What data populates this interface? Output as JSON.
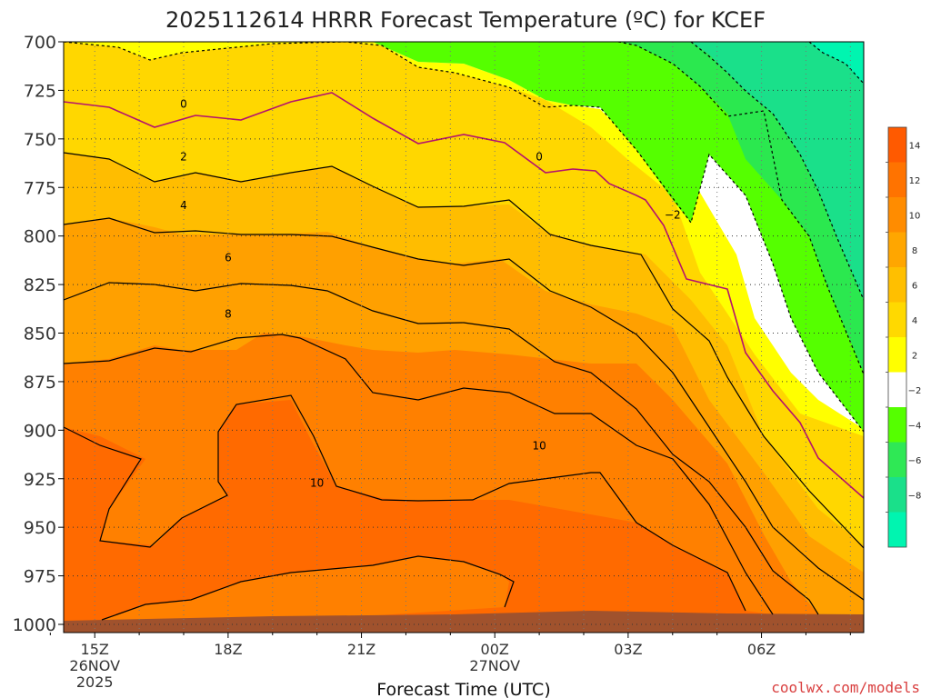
{
  "chart_data": {
    "type": "heatmap",
    "title": "2025112614 HRRR Forecast Temperature (ºC) for KCEF",
    "xlabel": "Forecast Time (UTC)",
    "ylabel": "",
    "y_ticks": [
      "700",
      "725",
      "750",
      "775",
      "800",
      "825",
      "850",
      "875",
      "900",
      "925",
      "950",
      "975",
      "1000"
    ],
    "x_ticks": [
      {
        "label": "15Z",
        "sub": [
          "26NOV",
          "2025"
        ]
      },
      {
        "label": "18Z",
        "sub": []
      },
      {
        "label": "21Z",
        "sub": []
      },
      {
        "label": "00Z",
        "sub": [
          "27NOV"
        ]
      },
      {
        "label": "03Z",
        "sub": []
      },
      {
        "label": "06Z",
        "sub": []
      }
    ],
    "x_hours": [
      14,
      15,
      16,
      17,
      18,
      19,
      20,
      21,
      22,
      23,
      24,
      25,
      26,
      27,
      28,
      29,
      30,
      31,
      32
    ],
    "xlim": [
      14.3,
      32.3
    ],
    "ylim": [
      700,
      1000
    ],
    "contour_labels": [
      {
        "text": "0",
        "x": 17,
        "p": 734
      },
      {
        "text": "2",
        "x": 17,
        "p": 761
      },
      {
        "text": "4",
        "x": 17,
        "p": 786
      },
      {
        "text": "6",
        "x": 18,
        "p": 813
      },
      {
        "text": "8",
        "x": 18,
        "p": 842
      },
      {
        "text": "10",
        "x": 20,
        "p": 929
      },
      {
        "text": "10",
        "x": 25,
        "p": 910
      },
      {
        "text": "0",
        "x": 25,
        "p": 761
      },
      {
        "text": "−2",
        "x": 28,
        "p": 791
      }
    ],
    "colorbar": {
      "ticks": [
        "14",
        "12",
        "10",
        "8",
        "6",
        "4",
        "2",
        "−2",
        "−4",
        "−6",
        "−8"
      ],
      "colors": [
        "#ff5a00",
        "#ff7300",
        "#ff8c00",
        "#ffa600",
        "#ffbf00",
        "#ffd900",
        "#ffff00",
        "#ffffff",
        "#55ff00",
        "#2fe855",
        "#1ae08a",
        "#00f5b0"
      ]
    },
    "ground_color": "#a0522d"
  },
  "credit": "coolwx.com/models"
}
